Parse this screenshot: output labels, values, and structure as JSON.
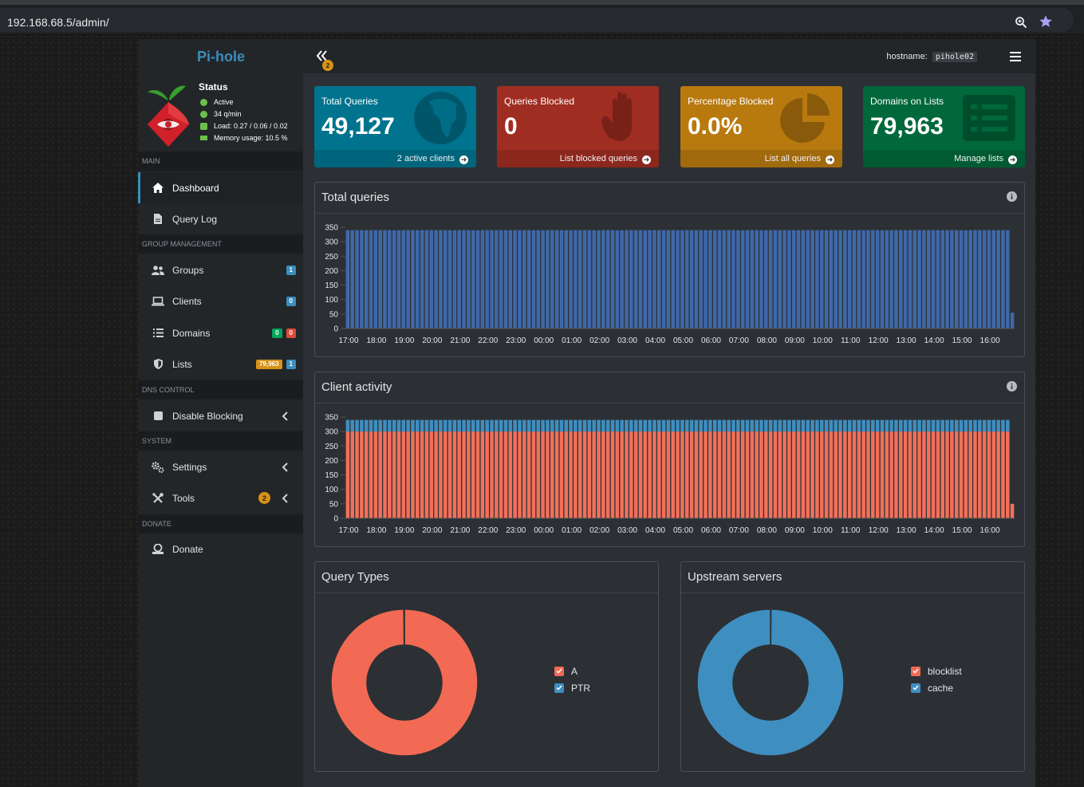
{
  "browser": {
    "url": "192.168.68.5/admin/"
  },
  "brand": {
    "name": "Pi-hole"
  },
  "status": {
    "title": "Status",
    "active": "Active",
    "rate": "34 q/min",
    "load": "Load: 0.27 / 0.06 / 0.02",
    "memory": "Memory usage: 10.5 %"
  },
  "sidebar": {
    "sections": {
      "main": "MAIN",
      "group": "GROUP MANAGEMENT",
      "dns": "DNS CONTROL",
      "system": "SYSTEM",
      "donate": "DONATE"
    },
    "items": {
      "dashboard": "Dashboard",
      "querylog": "Query Log",
      "groups": "Groups",
      "groups_badge": "1",
      "clients": "Clients",
      "clients_badge": "0",
      "domains": "Domains",
      "domains_badge_allow": "0",
      "domains_badge_deny": "0",
      "lists": "Lists",
      "lists_badge_domains": "79,963",
      "lists_badge_count": "1",
      "disable": "Disable Blocking",
      "settings": "Settings",
      "tools": "Tools",
      "tools_badge": "2",
      "donate": "Donate"
    }
  },
  "header": {
    "hostname_label": "hostname:",
    "hostname": "pihole02",
    "toggle_badge": "2"
  },
  "stats": {
    "total": {
      "title": "Total Queries",
      "value": "49,127",
      "footer": "2 active clients",
      "color": "#00738e"
    },
    "blocked": {
      "title": "Queries Blocked",
      "value": "0",
      "footer": "List blocked queries",
      "color": "#a02d22"
    },
    "percent": {
      "title": "Percentage Blocked",
      "value": "0.0%",
      "footer": "List all queries",
      "color": "#b8790f"
    },
    "domains": {
      "title": "Domains on Lists",
      "value": "79,963",
      "footer": "Manage lists",
      "color": "#00683a"
    }
  },
  "panels": {
    "total_queries": "Total queries",
    "client_activity": "Client activity",
    "query_types": "Query Types",
    "upstream": "Upstream servers"
  },
  "chart_data": [
    {
      "type": "bar",
      "name": "total-queries",
      "x": [
        "17:00",
        "18:00",
        "19:00",
        "20:00",
        "21:00",
        "22:00",
        "23:00",
        "00:00",
        "01:00",
        "02:00",
        "03:00",
        "04:00",
        "05:00",
        "06:00",
        "07:00",
        "08:00",
        "09:00",
        "10:00",
        "11:00",
        "12:00",
        "13:00",
        "14:00",
        "15:00",
        "16:00"
      ],
      "yticks": [
        0,
        50,
        100,
        150,
        200,
        250,
        300,
        350
      ],
      "ylim": [
        0,
        350
      ],
      "bars_per_hour": 6,
      "series": [
        {
          "values_per_bar": 340,
          "last_bar_value": 55,
          "color": "#3f68a8"
        }
      ]
    },
    {
      "type": "bar",
      "name": "client-activity",
      "x": [
        "17:00",
        "18:00",
        "19:00",
        "20:00",
        "21:00",
        "22:00",
        "23:00",
        "00:00",
        "01:00",
        "02:00",
        "03:00",
        "04:00",
        "05:00",
        "06:00",
        "07:00",
        "08:00",
        "09:00",
        "10:00",
        "11:00",
        "12:00",
        "13:00",
        "14:00",
        "15:00",
        "16:00"
      ],
      "yticks": [
        0,
        50,
        100,
        150,
        200,
        250,
        300,
        350
      ],
      "ylim": [
        0,
        350
      ],
      "stacked": true,
      "bars_per_hour": 6,
      "series": [
        {
          "values_per_bar": 300,
          "last_bar_value": 50,
          "color": "#f2705a"
        },
        {
          "values_per_bar": 40,
          "last_bar_value": 0,
          "color": "#3f8ec0"
        }
      ]
    },
    {
      "type": "pie",
      "name": "query-types",
      "labels": [
        "A",
        "PTR"
      ],
      "values": [
        99.9,
        0.1
      ],
      "colors": [
        "#f26a54",
        "#3f8ec0"
      ]
    },
    {
      "type": "pie",
      "name": "upstream-servers",
      "labels": [
        "blocklist",
        "cache"
      ],
      "values": [
        0.1,
        99.9
      ],
      "colors": [
        "#f26a54",
        "#3f8ec0"
      ]
    }
  ]
}
